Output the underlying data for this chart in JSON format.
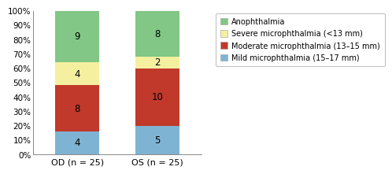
{
  "categories": [
    "OD (n = 25)",
    "OS (n = 25)"
  ],
  "mild": [
    4,
    5
  ],
  "moderate": [
    8,
    10
  ],
  "severe": [
    4,
    2
  ],
  "anophthalmia": [
    9,
    8
  ],
  "total": [
    25,
    25
  ],
  "colors": {
    "mild": "#7fb3d3",
    "moderate": "#c0392b",
    "severe": "#f5f0a0",
    "anophthalmia": "#82c785"
  },
  "legend_labels": [
    "Anophthalmia",
    "Severe microphthalmia (<13 mm)",
    "Moderate microphthalmia (13–15 mm)",
    "Mild microphthalmia (15–17 mm)"
  ],
  "yticks": [
    0,
    10,
    20,
    30,
    40,
    50,
    60,
    70,
    80,
    90,
    100
  ],
  "ytick_labels": [
    "0%",
    "10%",
    "20%",
    "30%",
    "40%",
    "50%",
    "60%",
    "70%",
    "80%",
    "90%",
    "100%"
  ],
  "bar_width": 0.55,
  "bar_label_fontsize": 8.5,
  "legend_fontsize": 7.0,
  "tick_fontsize": 7.5,
  "xtick_fontsize": 8.0
}
